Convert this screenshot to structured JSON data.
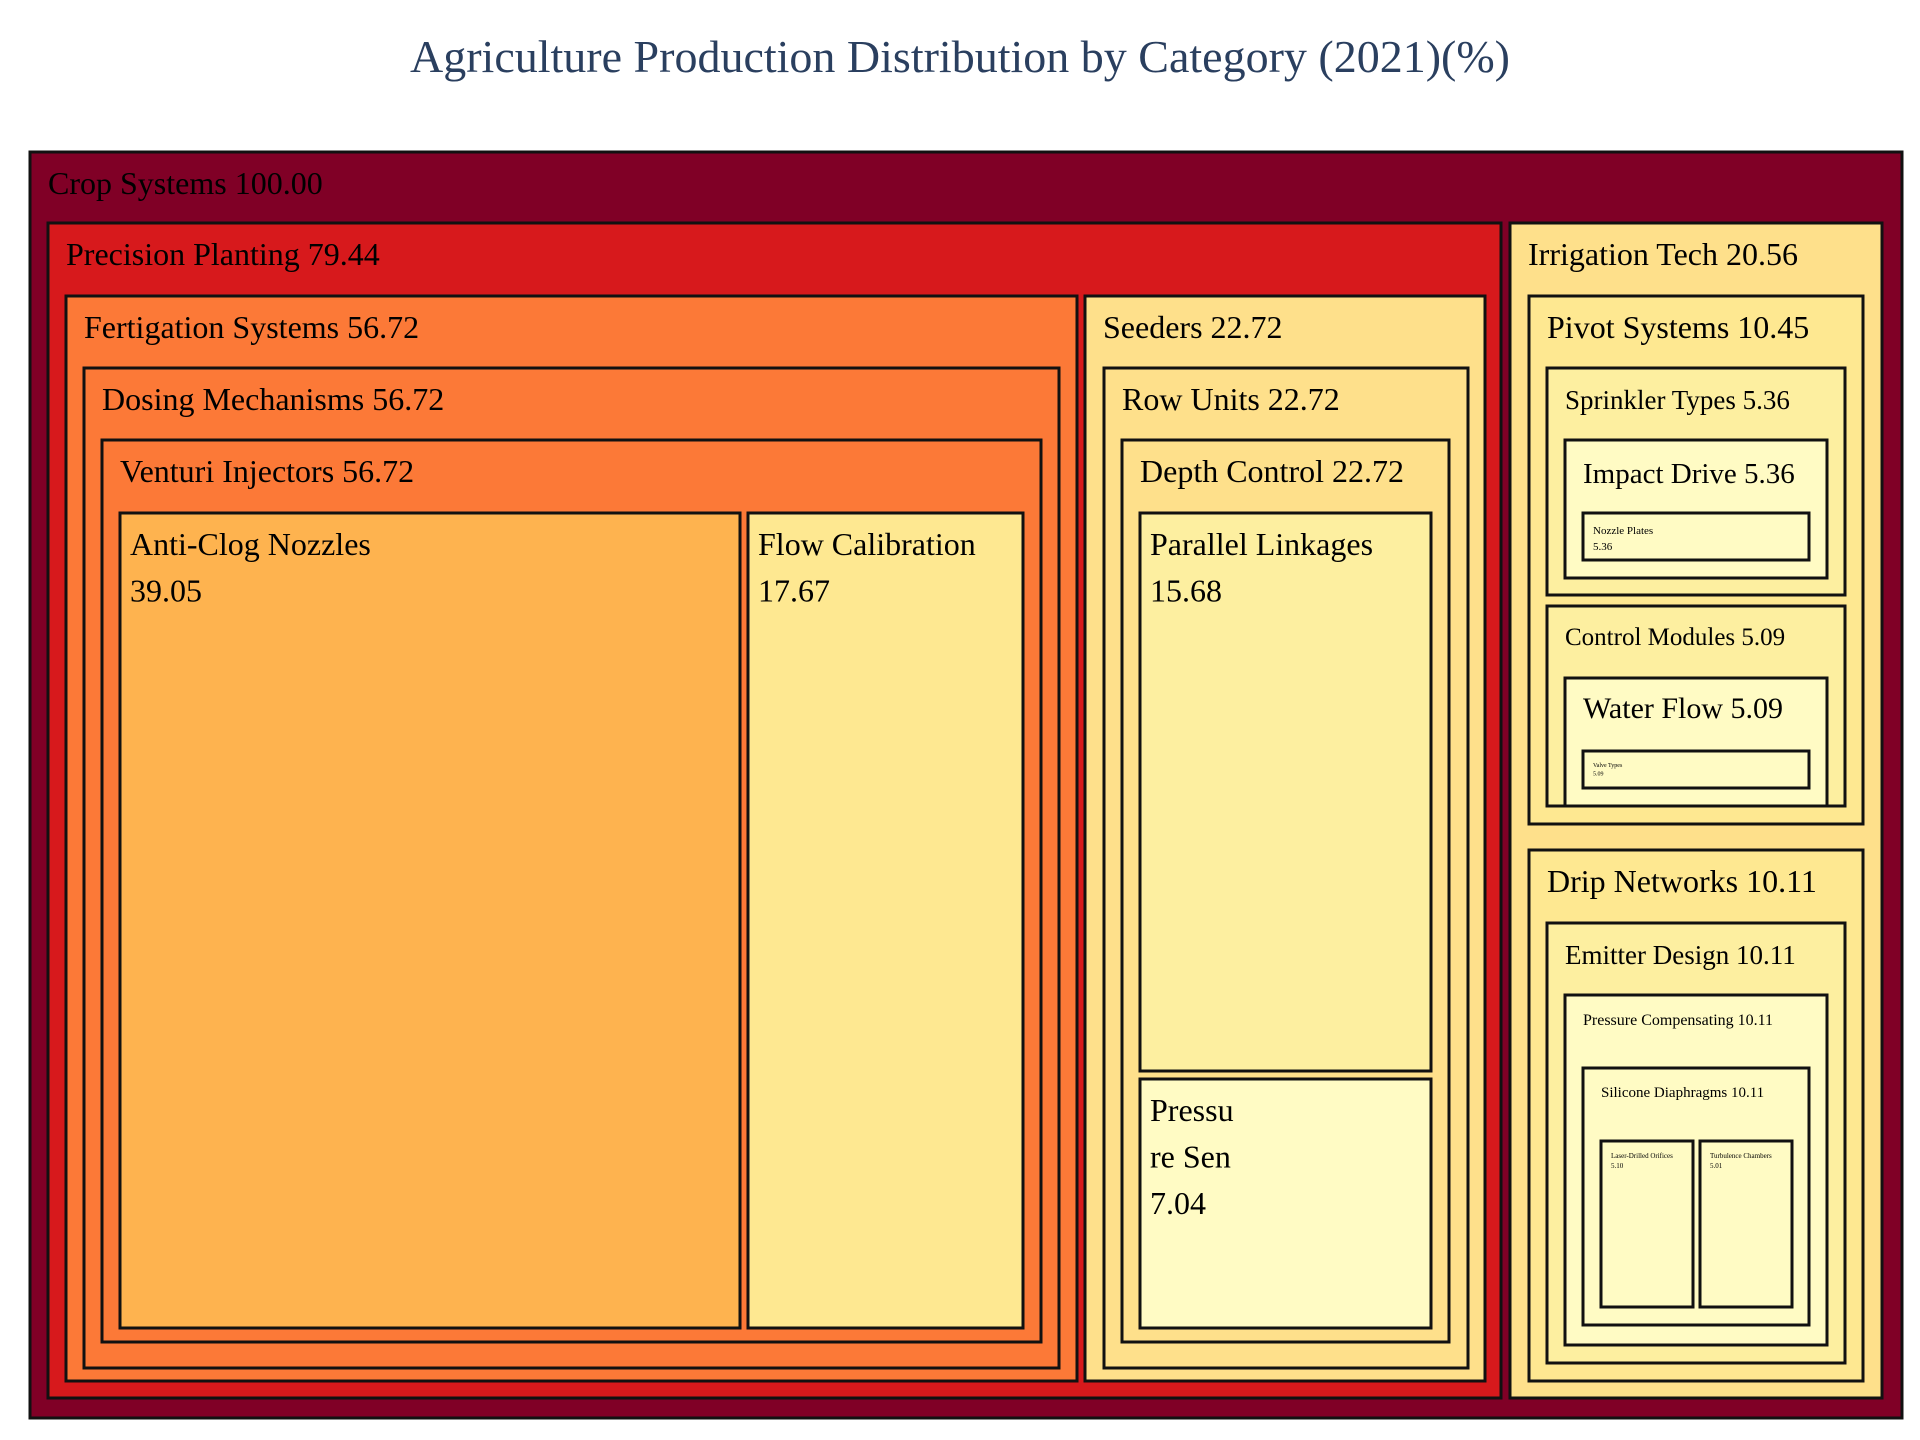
{
  "chart_data": {
    "type": "treemap",
    "title": "Agriculture Production Distribution by Category (2021)(%)",
    "colors": {
      "crop": "#800026",
      "precision": "#d7191c",
      "fertigation": "#fc7937",
      "anticlog": "#feb34f",
      "light": "#fee891",
      "lighter": "#fdefa0",
      "lightest": "#fffbc4",
      "seeder": "#fee08b",
      "irrigation": "#fee08b"
    },
    "root": {
      "name": "Crop Systems",
      "value": "100.00",
      "children": [
        {
          "name": "Precision Planting",
          "value": "79.44",
          "children": [
            {
              "name": "Fertigation Systems",
              "value": "56.72",
              "children": [
                {
                  "name": "Dosing Mechanisms",
                  "value": "56.72",
                  "children": [
                    {
                      "name": "Venturi Injectors",
                      "value": "56.72",
                      "children": [
                        {
                          "name": "Anti-Clog Nozzles",
                          "value": "39.05"
                        },
                        {
                          "name": "Flow Calibration",
                          "value": "17.67"
                        }
                      ]
                    }
                  ]
                }
              ]
            },
            {
              "name": "Seeders",
              "value": "22.72",
              "children": [
                {
                  "name": "Row Units",
                  "value": "22.72",
                  "children": [
                    {
                      "name": "Depth Control",
                      "value": "22.72",
                      "children": [
                        {
                          "name": "Parallel Linkages",
                          "value": "15.68"
                        },
                        {
                          "name": "Pressu",
                          "value": "7.04",
                          "line2": "re Sen"
                        }
                      ]
                    }
                  ]
                }
              ]
            }
          ]
        },
        {
          "name": "Irrigation Tech",
          "value": "20.56",
          "children": [
            {
              "name": "Pivot Systems",
              "value": "10.45",
              "children": [
                {
                  "name": "Sprinkler Types",
                  "value": "5.36",
                  "children": [
                    {
                      "name": "Impact Drive",
                      "value": "5.36",
                      "children": [
                        {
                          "name": "Nozzle Plates",
                          "value": "5.36"
                        }
                      ]
                    }
                  ]
                },
                {
                  "name": "Control Modules",
                  "value": "5.09",
                  "children": [
                    {
                      "name": "Water Flow",
                      "value": "5.09",
                      "children": [
                        {
                          "name": "Valve Types",
                          "value": "5.09"
                        }
                      ]
                    }
                  ]
                }
              ]
            },
            {
              "name": "Drip Networks",
              "value": "10.11",
              "children": [
                {
                  "name": "Emitter Design",
                  "value": "10.11",
                  "children": [
                    {
                      "name": "Pressure Compensating",
                      "value": "10.11",
                      "children": [
                        {
                          "name": "Silicone Diaphragms",
                          "value": "10.11",
                          "children": [
                            {
                              "name": "Laser-Drilled Orifices",
                              "value": "5.10"
                            },
                            {
                              "name": "Turbulence Chambers",
                              "value": "5.01"
                            }
                          ]
                        }
                      ]
                    }
                  ]
                }
              ]
            }
          ]
        }
      ]
    }
  }
}
